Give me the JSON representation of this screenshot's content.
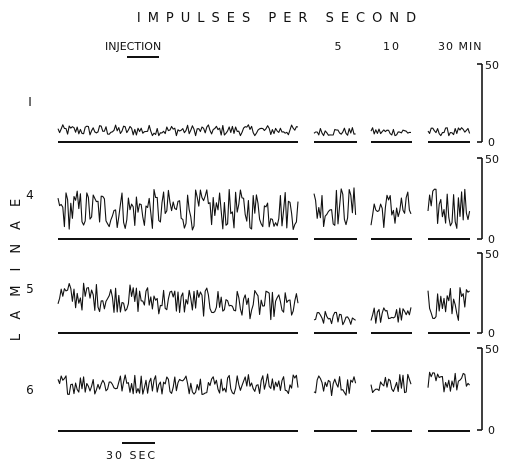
{
  "chart_data": {
    "type": "line",
    "title": "IMPULSES PER SECOND",
    "ylabel": "LAMINAE",
    "segments": [
      {
        "label": "INJECTION"
      },
      {
        "label": "5"
      },
      {
        "label": "10"
      },
      {
        "label": "30 MIN"
      }
    ],
    "scale_bar": {
      "label": "30 SEC"
    },
    "ylim": [
      0,
      50
    ],
    "y_tick_labels": [
      "50",
      "0"
    ],
    "series": [
      {
        "name": "I",
        "mean": [
          4,
          3,
          3,
          3
        ],
        "spread": [
          4,
          3,
          3,
          3
        ]
      },
      {
        "name": "4",
        "mean": [
          16,
          18,
          16,
          17
        ],
        "spread": [
          14,
          14,
          13,
          14
        ]
      },
      {
        "name": "5",
        "mean": [
          18,
          6,
          8,
          16
        ],
        "spread": [
          10,
          5,
          6,
          12
        ]
      },
      {
        "name": "6",
        "mean": [
          27,
          26,
          28,
          28
        ],
        "spread": [
          7,
          7,
          7,
          7
        ]
      }
    ]
  }
}
